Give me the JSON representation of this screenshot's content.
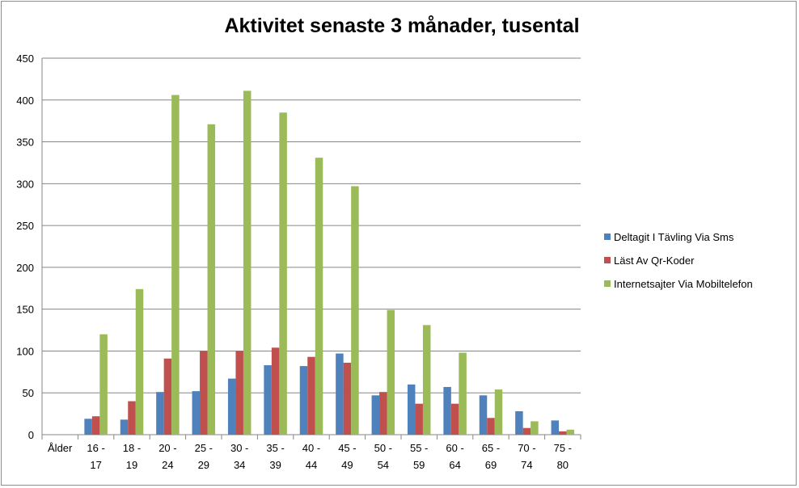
{
  "chart_data": {
    "type": "bar",
    "title": "Aktivitet senaste 3 månader, tusental",
    "xlabel": "",
    "ylabel": "",
    "ylim": [
      0,
      450
    ],
    "yticks": [
      0,
      50,
      100,
      150,
      200,
      250,
      300,
      350,
      400,
      450
    ],
    "grid": true,
    "legend_position": "right",
    "categories": [
      "Ålder",
      "16 - 17",
      "18 - 19",
      "20 - 24",
      "25 - 29",
      "30 - 34",
      "35 - 39",
      "40 - 44",
      "45 - 49",
      "50 - 54",
      "55 - 59",
      "60 - 64",
      "65 - 69",
      "70 - 74",
      "75 - 80"
    ],
    "category_lines": [
      [
        "Ålder"
      ],
      [
        "16 -",
        "17"
      ],
      [
        "18 -",
        "19"
      ],
      [
        "20 -",
        "24"
      ],
      [
        "25 -",
        "29"
      ],
      [
        "30 -",
        "34"
      ],
      [
        "35 -",
        "39"
      ],
      [
        "40 -",
        "44"
      ],
      [
        "45 -",
        "49"
      ],
      [
        "50 -",
        "54"
      ],
      [
        "55 -",
        "59"
      ],
      [
        "60 -",
        "64"
      ],
      [
        "65 -",
        "69"
      ],
      [
        "70 -",
        "74"
      ],
      [
        "75 -",
        "80"
      ]
    ],
    "series": [
      {
        "name": "Deltagit I Tävling Via Sms",
        "color": "#4f81bd",
        "values": [
          null,
          19,
          18,
          51,
          52,
          67,
          83,
          82,
          97,
          47,
          60,
          57,
          47,
          28,
          17
        ]
      },
      {
        "name": "Läst Av Qr-Koder",
        "color": "#c0504d",
        "values": [
          null,
          22,
          40,
          91,
          100,
          100,
          104,
          93,
          86,
          51,
          37,
          37,
          20,
          8,
          4
        ]
      },
      {
        "name": "Internetsajter Via Mobiltelefon",
        "color": "#9bbb59",
        "values": [
          null,
          120,
          174,
          406,
          371,
          411,
          385,
          331,
          297,
          149,
          131,
          98,
          54,
          16,
          6
        ]
      }
    ]
  }
}
